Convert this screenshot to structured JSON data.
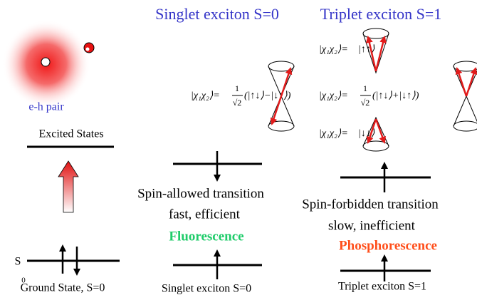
{
  "left": {
    "pair_label": "e-h pair",
    "excited_label": "Excited States",
    "ground_symbol": "S",
    "ground_subscript": "0",
    "ground_label": "Ground State, S=0"
  },
  "singlet": {
    "title": "Singlet exciton S=0",
    "formula": {
      "lhs": "|χ₁χ₂⟩=",
      "num": "1",
      "den": "√2",
      "rhs": "(|↑↓⟩−|↓↑⟩)"
    },
    "transition": "Spin-allowed transition",
    "speed": "fast, efficient",
    "process": "Fluorescence",
    "bottom_label": "Singlet exciton S=0"
  },
  "triplet": {
    "title": "Triplet exciton S=1",
    "formulas": [
      {
        "lhs": "|χ₁χ₂⟩=",
        "rhs": "|↑↑⟩"
      },
      {
        "lhs": "|χ₁χ₂⟩=",
        "num": "1",
        "den": "√2",
        "rhs": "(|↑↓⟩+|↓↑⟩)"
      },
      {
        "lhs": "|χ₁χ₂⟩=",
        "rhs": "|↓↓⟩"
      }
    ],
    "transition": "Spin-forbidden transition",
    "speed": "slow, inefficient",
    "process": "Phosphorescence",
    "bottom_label": "Triplet exciton S=1"
  }
}
